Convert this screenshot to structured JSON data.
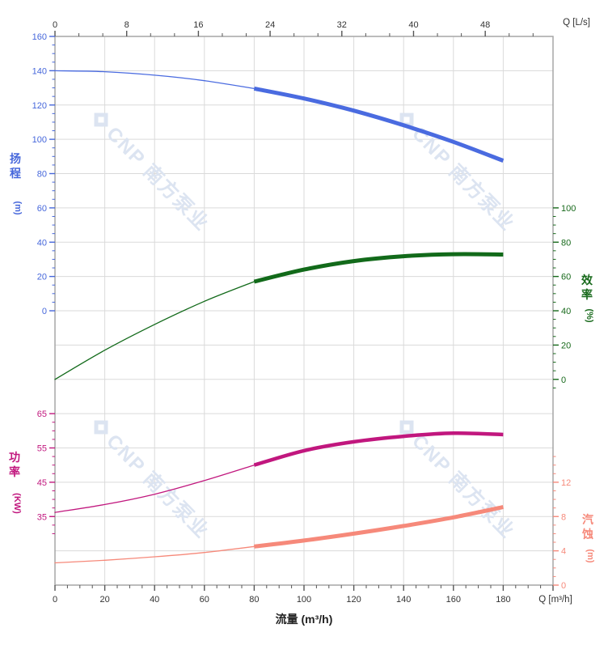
{
  "watermark": {
    "logo": "cnp-diamond-logo",
    "brand_latin": "CNP",
    "brand_cn": "南方泵业",
    "color": "#dce4f1"
  },
  "chart_data": {
    "type": "line",
    "title": "",
    "x_axis": {
      "top": {
        "unit_label": "Q [L/s]",
        "ticks": [
          0,
          8,
          16,
          24,
          32,
          40,
          48
        ],
        "range": [
          0,
          55.56
        ],
        "color": "#333333"
      },
      "bottom": {
        "unit_label": "Q [m³/h]",
        "title": "流量 (m³/h)",
        "ticks": [
          0,
          20,
          40,
          60,
          80,
          100,
          120,
          140,
          160,
          180
        ],
        "range": [
          0,
          200
        ],
        "color": "#333333"
      }
    },
    "y_axes": {
      "head": {
        "title_cn": "扬程",
        "unit": "(m)",
        "side": "left",
        "ticks": [
          160,
          140,
          120,
          100,
          80,
          60,
          40,
          20,
          0
        ],
        "top_value": 160,
        "bottom_value": 0,
        "color": "#4667db"
      },
      "efficiency": {
        "title_cn": "效率",
        "unit": "(%)",
        "side": "right",
        "ticks": [
          100,
          80,
          60,
          40,
          20,
          0
        ],
        "top_value": 100,
        "bottom_value": 0,
        "color": "#17691b"
      },
      "power": {
        "title_cn": "功率",
        "unit": "(KW)",
        "side": "left",
        "ticks": [
          65,
          55,
          45,
          35
        ],
        "top_value": 65,
        "bottom_value": 35,
        "color": "#c1177e"
      },
      "npsh": {
        "title_cn": "汽蚀",
        "unit": "(m)",
        "side": "right",
        "ticks": [
          12,
          8,
          4,
          0
        ],
        "top_value": 12,
        "bottom_value": 0,
        "color": "#f6897a"
      }
    },
    "x_values": [
      0,
      20,
      40,
      60,
      80,
      100,
      120,
      140,
      160,
      180
    ],
    "rated_range_m3h": [
      80,
      180
    ],
    "series": [
      {
        "name": "head",
        "axis": "head",
        "unit": "m",
        "color": "#4a6be0",
        "values": [
          140,
          139.4,
          137.4,
          134.2,
          129.6,
          123.8,
          116.7,
          108.2,
          98.5,
          87.5
        ]
      },
      {
        "name": "efficiency",
        "axis": "efficiency",
        "unit": "%",
        "color": "#126a1a",
        "values": [
          0,
          17,
          32,
          45.5,
          57,
          64,
          69,
          71.8,
          73,
          72.8
        ]
      },
      {
        "name": "power",
        "axis": "power",
        "unit": "KW",
        "color": "#c1177e",
        "values": [
          36.2,
          38.5,
          41.5,
          45.5,
          50,
          54.2,
          56.8,
          58.4,
          59.3,
          58.9
        ]
      },
      {
        "name": "npsh",
        "axis": "npsh",
        "unit": "m",
        "color": "#f6897a",
        "values": [
          2.6,
          2.9,
          3.3,
          3.8,
          4.5,
          5.2,
          6.0,
          6.9,
          7.9,
          9.1
        ]
      }
    ],
    "grid": "on",
    "legend": "none"
  }
}
